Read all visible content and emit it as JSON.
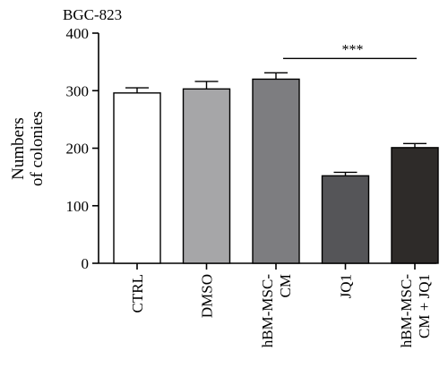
{
  "chart_data": {
    "type": "bar",
    "title": "BGC-823",
    "ylabel": [
      "Numbers",
      "of colonies"
    ],
    "xlabel": "",
    "ylim": [
      0,
      400
    ],
    "yticks": [
      0,
      100,
      200,
      300,
      400
    ],
    "categories": [
      [
        "CTRL"
      ],
      [
        "DMSO"
      ],
      [
        "hBM-MSC-",
        "CM"
      ],
      [
        "JQ1"
      ],
      [
        "hBM-MSC-",
        "CM + JQ1"
      ]
    ],
    "values": [
      296,
      303,
      320,
      152,
      201
    ],
    "errors": [
      9,
      13,
      11,
      6,
      7
    ],
    "bar_colors": [
      "#ffffff",
      "#a6a6a8",
      "#7d7d80",
      "#555558",
      "#2e2b29"
    ],
    "significance": {
      "from": 2,
      "to": 4,
      "label": "***",
      "y": 356
    },
    "grid": false,
    "legend": "none"
  }
}
